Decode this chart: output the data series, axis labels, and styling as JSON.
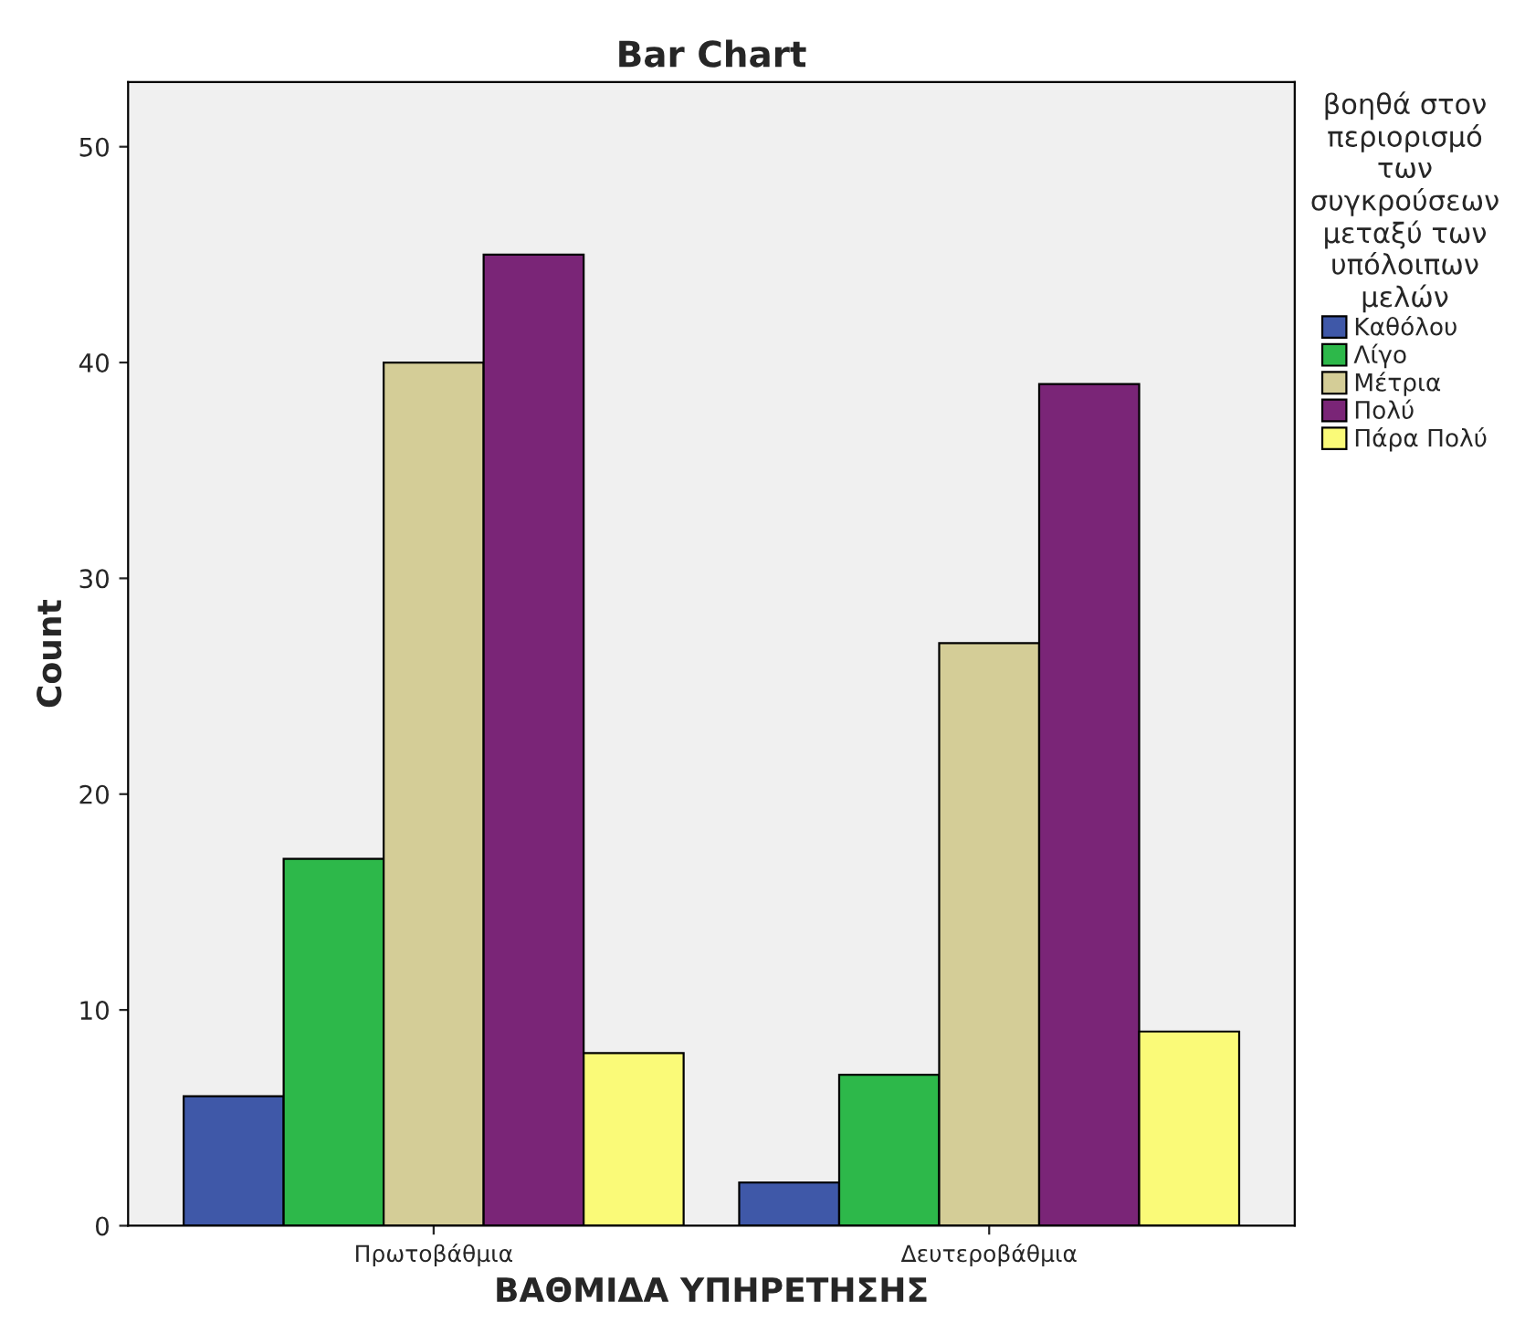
{
  "chart_data": {
    "type": "bar",
    "title": "Bar Chart",
    "xlabel": "ΒΑΘΜΙΔΑ ΥΠΗΡΕΤΗΣΗΣ",
    "ylabel": "Count",
    "legend_title": "βοηθά στον\nπεριορισμό\nτων\nσυγκρούσεων\nμεταξύ των\nυπόλοιπων\nμελών",
    "categories": [
      "Πρωτοβάθμια",
      "Δευτεροβάθμια"
    ],
    "series": [
      {
        "name": "Καθόλου",
        "color": "#3f58a8",
        "values": [
          6,
          2
        ]
      },
      {
        "name": "Λίγο",
        "color": "#2db84a",
        "values": [
          17,
          7
        ]
      },
      {
        "name": "Μέτρια",
        "color": "#d4cd97",
        "values": [
          40,
          27
        ]
      },
      {
        "name": "Πολύ",
        "color": "#7a2577",
        "values": [
          45,
          39
        ]
      },
      {
        "name": "Πάρα Πολύ",
        "color": "#fafa78",
        "values": [
          8,
          9
        ]
      }
    ],
    "ylim": [
      0,
      53
    ],
    "yticks": [
      0,
      10,
      20,
      30,
      40,
      50
    ],
    "grid": false,
    "legend": "right"
  }
}
